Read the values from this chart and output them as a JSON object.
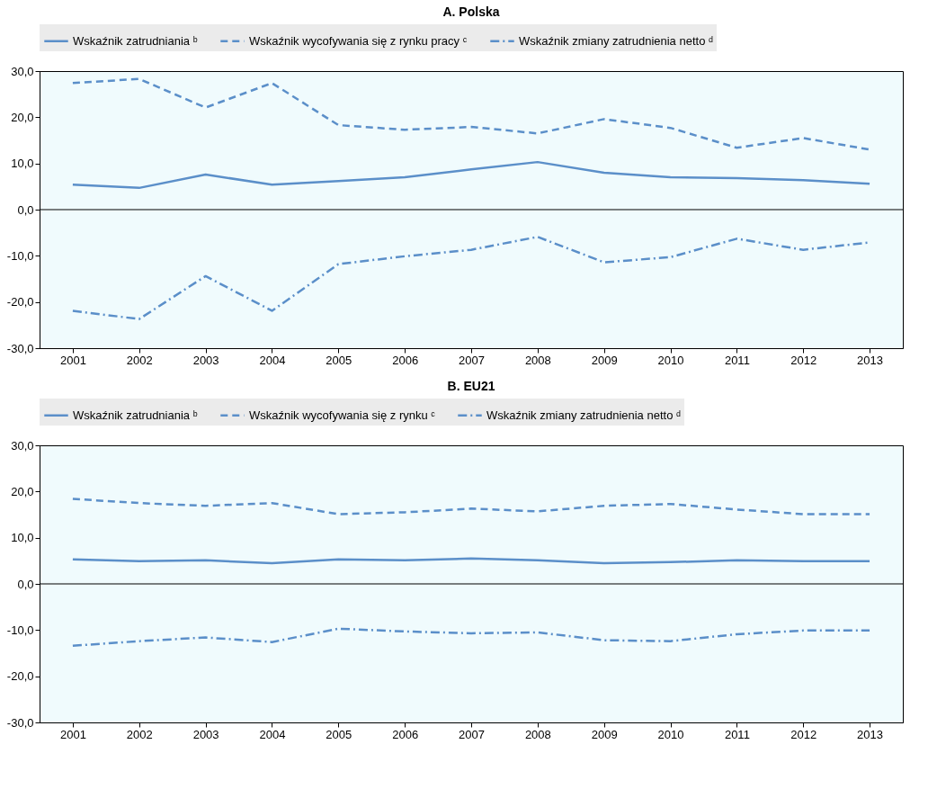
{
  "chart_data": [
    {
      "type": "line",
      "title": "A. Polska",
      "categories": [
        "2001",
        "2002",
        "2003",
        "2004",
        "2005",
        "2006",
        "2007",
        "2008",
        "2009",
        "2010",
        "2011",
        "2012",
        "2013"
      ],
      "series": [
        {
          "name": "Wskaźnik zatrudniania ᵇ",
          "color": "#5b8fc9",
          "line_style": "solid",
          "values": [
            5.4,
            4.7,
            7.6,
            5.4,
            6.2,
            7.0,
            8.7,
            10.3,
            8.0,
            7.0,
            6.8,
            6.4,
            5.6
          ]
        },
        {
          "name": "Wskaźnik wycofywania się z rynku pracy ᶜ",
          "color": "#5b8fc9",
          "line_style": "dashed",
          "values": [
            27.4,
            28.3,
            22.1,
            27.4,
            18.3,
            17.3,
            17.9,
            16.5,
            19.6,
            17.7,
            13.4,
            15.5,
            13.0
          ]
        },
        {
          "name": "Wskaźnik zmiany zatrudnienia netto ᵈ",
          "color": "#5b8fc9",
          "line_style": "dashdot",
          "values": [
            -21.9,
            -23.7,
            -14.4,
            -21.9,
            -11.8,
            -10.1,
            -8.7,
            -5.9,
            -11.4,
            -10.3,
            -6.3,
            -8.7,
            -7.1
          ]
        }
      ],
      "ylim": [
        -30,
        30
      ],
      "yticks": [
        {
          "value": -30,
          "label": "-30,0"
        },
        {
          "value": -20,
          "label": "-20,0"
        },
        {
          "value": -10,
          "label": "-10,0"
        },
        {
          "value": 0,
          "label": "0,0"
        },
        {
          "value": 10,
          "label": "10,0"
        },
        {
          "value": 20,
          "label": "20,0"
        },
        {
          "value": 30,
          "label": "30,0"
        }
      ],
      "ref_lines": [
        {
          "axis": "y",
          "value": 0,
          "color": "#000000"
        }
      ],
      "grid": false,
      "legend": "top"
    },
    {
      "type": "line",
      "title": "B. EU21",
      "categories": [
        "2001",
        "2002",
        "2003",
        "2004",
        "2005",
        "2006",
        "2007",
        "2008",
        "2009",
        "2010",
        "2011",
        "2012",
        "2013"
      ],
      "series": [
        {
          "name": "Wskaźnik zatrudniania ᵇ",
          "color": "#5b8fc9",
          "line_style": "solid",
          "values": [
            5.3,
            4.9,
            5.1,
            4.5,
            5.3,
            5.1,
            5.5,
            5.1,
            4.5,
            4.7,
            5.1,
            4.9,
            4.9
          ]
        },
        {
          "name": "Wskaźnik wycofywania się z rynku ᶜ",
          "color": "#5b8fc9",
          "line_style": "dashed",
          "values": [
            18.4,
            17.5,
            16.9,
            17.5,
            15.1,
            15.5,
            16.3,
            15.7,
            16.9,
            17.3,
            16.1,
            15.1,
            15.1
          ]
        },
        {
          "name": "Wskaźnik zmiany zatrudnienia netto ᵈ",
          "color": "#5b8fc9",
          "line_style": "dashdot",
          "values": [
            -13.4,
            -12.4,
            -11.6,
            -12.6,
            -9.7,
            -10.3,
            -10.7,
            -10.5,
            -12.2,
            -12.4,
            -10.9,
            -10.1,
            -10.1
          ]
        }
      ],
      "ylim": [
        -30,
        30
      ],
      "yticks": [
        {
          "value": -30,
          "label": "-30,0"
        },
        {
          "value": -20,
          "label": "-20,0"
        },
        {
          "value": -10,
          "label": "-10,0"
        },
        {
          "value": 0,
          "label": "0,0"
        },
        {
          "value": 10,
          "label": "10,0"
        },
        {
          "value": 20,
          "label": "20,0"
        },
        {
          "value": 30,
          "label": "30,0"
        }
      ],
      "ref_lines": [
        {
          "axis": "y",
          "value": 0,
          "color": "#000000"
        }
      ],
      "grid": false,
      "legend": "top"
    }
  ]
}
